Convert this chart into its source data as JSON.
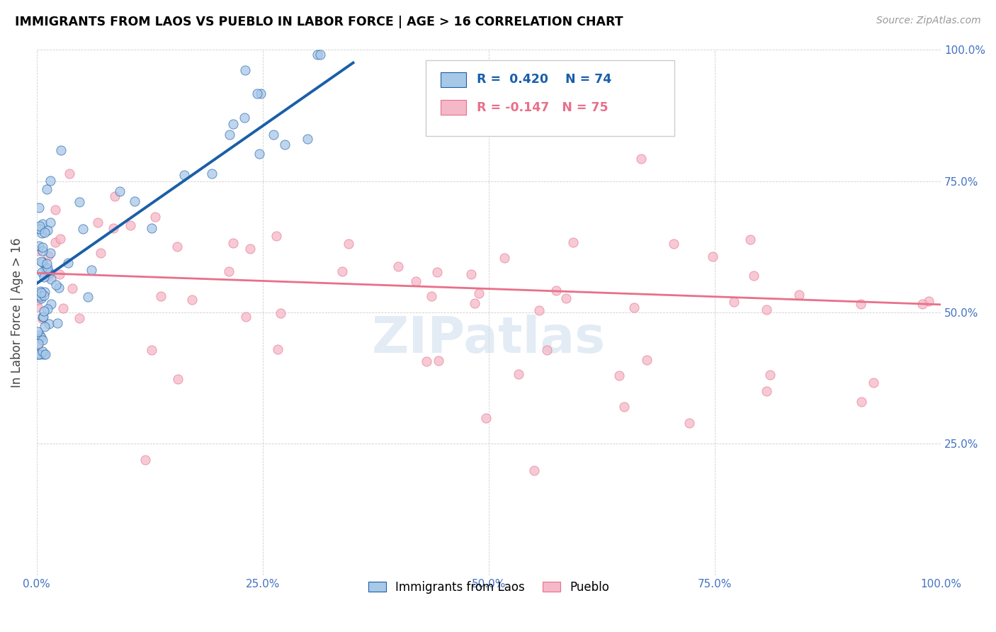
{
  "title": "IMMIGRANTS FROM LAOS VS PUEBLO IN LABOR FORCE | AGE > 16 CORRELATION CHART",
  "source": "Source: ZipAtlas.com",
  "ylabel": "In Labor Force | Age > 16",
  "watermark": "ZIPatlas",
  "r_laos": 0.42,
  "n_laos": 74,
  "r_pueblo": -0.147,
  "n_pueblo": 75,
  "xmin": 0.0,
  "xmax": 1.0,
  "ymin": 0.0,
  "ymax": 1.0,
  "color_laos": "#a8c8e8",
  "color_pueblo": "#f4b8c8",
  "line_color_laos": "#1a5fa8",
  "line_color_pueblo": "#e8708a",
  "legend_laos": "Immigrants from Laos",
  "legend_pueblo": "Pueblo",
  "laos_trend_x0": 0.0,
  "laos_trend_y0": 0.555,
  "laos_trend_x1": 0.35,
  "laos_trend_y1": 0.975,
  "pueblo_trend_x0": 0.0,
  "pueblo_trend_y0": 0.575,
  "pueblo_trend_x1": 1.0,
  "pueblo_trend_y1": 0.515
}
